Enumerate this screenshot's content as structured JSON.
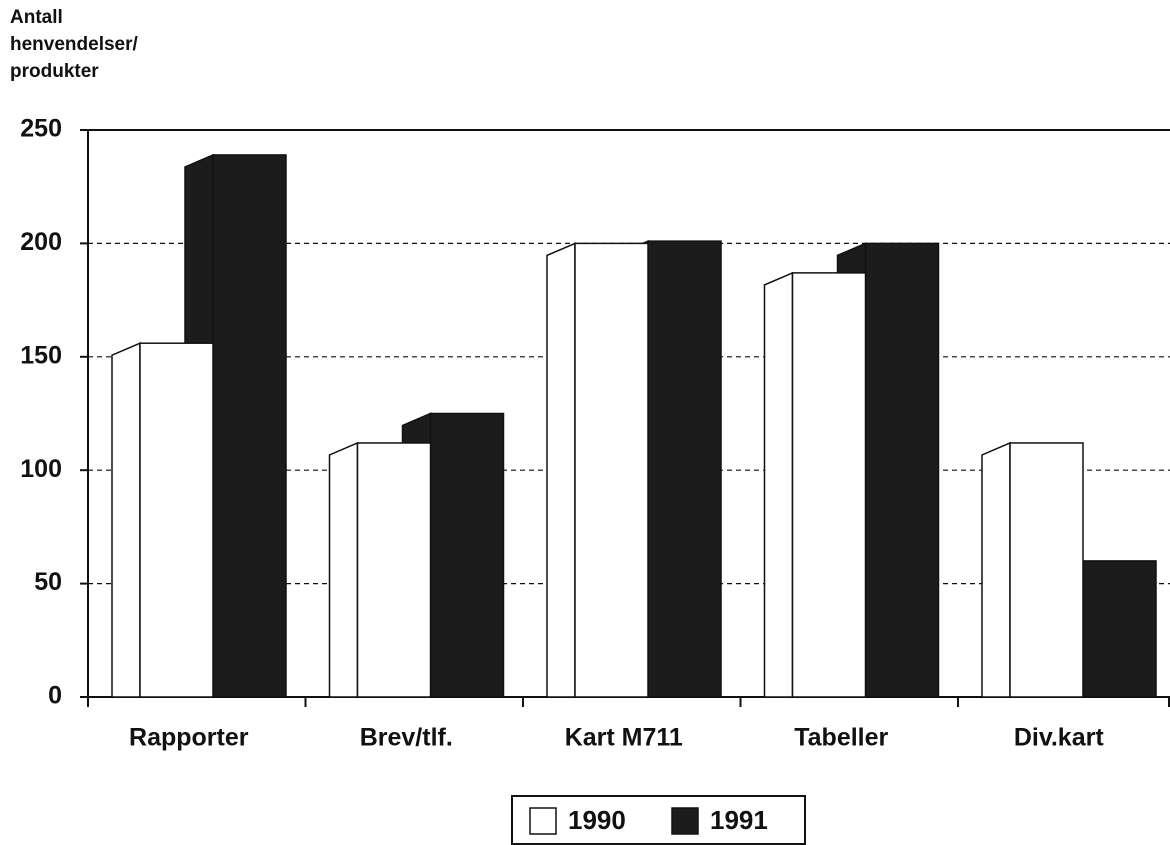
{
  "chart_data": {
    "type": "bar",
    "ylabel": [
      "Antall",
      "henvendelser/",
      "produkter"
    ],
    "categories": [
      "Rapporter",
      "Brev/tlf.",
      "Kart M711",
      "Tabeller",
      "Div.kart"
    ],
    "series": [
      {
        "name": "1990",
        "color": "#ffffff",
        "values": [
          156,
          112,
          200,
          187,
          112
        ]
      },
      {
        "name": "1991",
        "color": "#1c1c1c",
        "values": [
          239,
          125,
          201,
          200,
          60
        ]
      }
    ],
    "ylim": [
      0,
      250
    ],
    "yticks": [
      0,
      50,
      100,
      150,
      200,
      250
    ],
    "grid": true,
    "legend": "bottom"
  }
}
